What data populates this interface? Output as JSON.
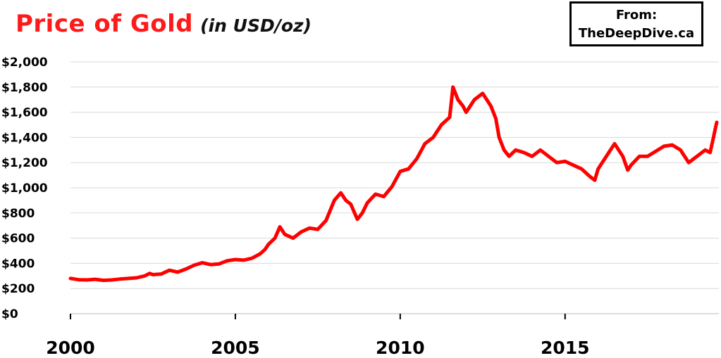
{
  "chart_data": {
    "type": "line",
    "title": "Price of Gold",
    "subtitle": "(in USD/oz)",
    "source_label": "From:",
    "source_name": "TheDeepDive.ca",
    "color": "#ff0000",
    "x_range": [
      2000.0,
      2019.6
    ],
    "ylim": [
      0,
      2000
    ],
    "y_ticks": [
      0,
      200,
      400,
      600,
      800,
      1000,
      1200,
      1400,
      1600,
      1800,
      2000
    ],
    "y_tick_labels": [
      "$0",
      "$200",
      "$400",
      "$600",
      "$800",
      "$1,000",
      "$1,200",
      "$1,400",
      "$1,600",
      "$1,800",
      "$2,000"
    ],
    "x_ticks": [
      2000,
      2005,
      2010,
      2015
    ],
    "x_tick_labels": [
      "2000",
      "2005",
      "2010",
      "2015"
    ],
    "grid": "horizontal",
    "series": [
      {
        "x": [
          2000.0,
          2000.25,
          2000.5,
          2000.75,
          2001.0,
          2001.25,
          2001.5,
          2001.75,
          2002.0,
          2002.25,
          2002.4,
          2002.5,
          2002.75,
          2003.0,
          2003.25,
          2003.5,
          2003.75,
          2004.0,
          2004.25,
          2004.5,
          2004.75,
          2005.0,
          2005.25,
          2005.5,
          2005.75,
          2005.9,
          2006.0,
          2006.2,
          2006.35,
          2006.5,
          2006.75,
          2007.0,
          2007.25,
          2007.5,
          2007.75,
          2008.0,
          2008.2,
          2008.35,
          2008.5,
          2008.7,
          2008.85,
          2009.0,
          2009.25,
          2009.5,
          2009.75,
          2010.0,
          2010.25,
          2010.5,
          2010.75,
          2011.0,
          2011.25,
          2011.5,
          2011.6,
          2011.75,
          2011.9,
          2012.0,
          2012.25,
          2012.5,
          2012.75,
          2012.9,
          2013.0,
          2013.15,
          2013.3,
          2013.5,
          2013.75,
          2014.0,
          2014.25,
          2014.5,
          2014.75,
          2015.0,
          2015.25,
          2015.5,
          2015.75,
          2015.9,
          2016.0,
          2016.25,
          2016.5,
          2016.75,
          2016.9,
          2017.0,
          2017.25,
          2017.5,
          2017.75,
          2018.0,
          2018.25,
          2018.5,
          2018.75,
          2019.0,
          2019.25,
          2019.4,
          2019.5,
          2019.58,
          2019.6
        ],
        "y": [
          280,
          270,
          268,
          273,
          265,
          268,
          275,
          280,
          285,
          300,
          320,
          310,
          315,
          345,
          330,
          355,
          385,
          405,
          390,
          395,
          420,
          430,
          425,
          440,
          475,
          510,
          550,
          600,
          690,
          630,
          600,
          650,
          680,
          670,
          740,
          900,
          960,
          900,
          870,
          750,
          800,
          880,
          950,
          930,
          1010,
          1130,
          1150,
          1230,
          1350,
          1400,
          1500,
          1560,
          1800,
          1700,
          1650,
          1600,
          1700,
          1750,
          1650,
          1550,
          1400,
          1300,
          1250,
          1300,
          1280,
          1250,
          1300,
          1250,
          1200,
          1210,
          1180,
          1150,
          1090,
          1060,
          1150,
          1250,
          1350,
          1250,
          1140,
          1180,
          1250,
          1250,
          1290,
          1330,
          1340,
          1300,
          1200,
          1250,
          1300,
          1280,
          1400,
          1500,
          1520
        ]
      }
    ]
  }
}
